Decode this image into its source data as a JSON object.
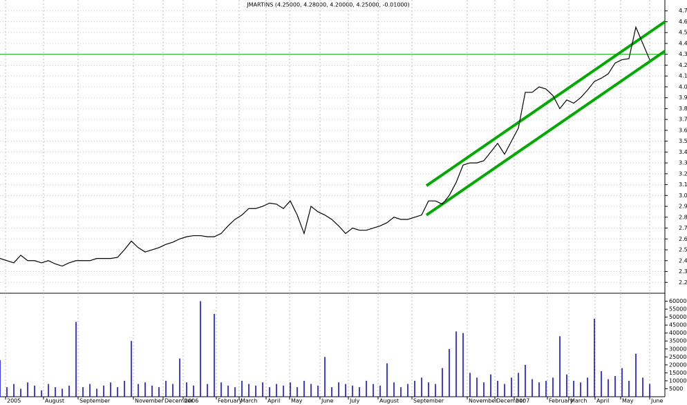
{
  "chart_data": {
    "type": "line",
    "title": "JMARTINS (4.25000, 4.28000, 4.20000, 4.25000, -0.01000)",
    "color": "#000000",
    "x": [
      0,
      10,
      20,
      30,
      40,
      50,
      60,
      70,
      80,
      90,
      100,
      110,
      120,
      130,
      140,
      150,
      160,
      170,
      180,
      190,
      200,
      210,
      220,
      230,
      240,
      250,
      260,
      270,
      280,
      290,
      300,
      310,
      320,
      330,
      340,
      350,
      360,
      370,
      380,
      390,
      400,
      410,
      420,
      430,
      440,
      450,
      460,
      470,
      480,
      490,
      500,
      510,
      520,
      530,
      540,
      550,
      560,
      570,
      580,
      590,
      600,
      610,
      620,
      630,
      640,
      650,
      660,
      670,
      680,
      690,
      700,
      710,
      720,
      730,
      740,
      750,
      760,
      770,
      780,
      790,
      800,
      810,
      820,
      830,
      840,
      850,
      860,
      870,
      880,
      890,
      900,
      910,
      920,
      930,
      940
    ],
    "values": [
      2.42,
      2.4,
      2.38,
      2.45,
      2.4,
      2.4,
      2.38,
      2.4,
      2.37,
      2.35,
      2.38,
      2.4,
      2.4,
      2.4,
      2.42,
      2.42,
      2.42,
      2.43,
      2.5,
      2.58,
      2.52,
      2.48,
      2.5,
      2.52,
      2.55,
      2.57,
      2.6,
      2.62,
      2.63,
      2.63,
      2.62,
      2.62,
      2.65,
      2.72,
      2.78,
      2.82,
      2.88,
      2.88,
      2.9,
      2.93,
      2.92,
      2.88,
      2.95,
      2.82,
      2.65,
      2.9,
      2.85,
      2.82,
      2.78,
      2.72,
      2.65,
      2.7,
      2.68,
      2.68,
      2.7,
      2.72,
      2.75,
      2.8,
      2.78,
      2.78,
      2.8,
      2.82,
      2.95,
      2.95,
      2.92,
      3.0,
      3.12,
      3.28,
      3.3,
      3.3,
      3.32,
      3.4,
      3.48,
      3.38,
      3.5,
      3.62,
      3.95,
      3.95,
      4.0,
      3.98,
      3.92,
      3.8,
      3.88,
      3.85,
      3.9,
      3.97,
      4.05,
      4.08,
      4.12,
      4.22,
      4.25,
      4.26,
      4.55,
      4.4,
      4.25
    ],
    "volume": {
      "color": "#0000cc",
      "values": [
        23000,
        6000,
        8000,
        5000,
        9000,
        7000,
        4000,
        8000,
        6000,
        5000,
        7000,
        47000,
        6000,
        8000,
        5000,
        7000,
        9000,
        6000,
        10000,
        35000,
        8000,
        9000,
        7000,
        6000,
        10000,
        8000,
        24000,
        9000,
        7000,
        60000,
        8000,
        52000,
        9000,
        7000,
        6000,
        10000,
        8000,
        7000,
        9000,
        6000,
        8000,
        7000,
        9000,
        6000,
        10000,
        8000,
        7000,
        25000,
        6000,
        9000,
        8000,
        7000,
        6000,
        10000,
        8000,
        7000,
        21000,
        9000,
        6000,
        8000,
        10000,
        12000,
        9000,
        8000,
        18000,
        30000,
        41000,
        40000,
        15000,
        12000,
        9000,
        14000,
        10000,
        8000,
        12000,
        15000,
        20000,
        11000,
        9000,
        10000,
        12000,
        38000,
        14000,
        10000,
        9000,
        12000,
        49000,
        16000,
        11000,
        13000,
        18000,
        10000,
        27000,
        12000,
        8000
      ],
      "ylim": [
        0,
        65000
      ],
      "yticks": [
        5000,
        10000,
        15000,
        20000,
        25000,
        30000,
        35000,
        40000,
        45000,
        50000,
        55000,
        60000
      ]
    },
    "xlim": [
      0,
      962
    ],
    "xticks": [
      {
        "value": 8,
        "label": "2005"
      },
      {
        "value": 63,
        "label": "August"
      },
      {
        "value": 113,
        "label": "September"
      },
      {
        "value": 193,
        "label": "November"
      },
      {
        "value": 236,
        "label": "December"
      },
      {
        "value": 265,
        "label": "2006"
      },
      {
        "value": 313,
        "label": "February"
      },
      {
        "value": 346,
        "label": "March"
      },
      {
        "value": 385,
        "label": "April"
      },
      {
        "value": 419,
        "label": "May"
      },
      {
        "value": 463,
        "label": "June"
      },
      {
        "value": 504,
        "label": "July"
      },
      {
        "value": 547,
        "label": "August"
      },
      {
        "value": 596,
        "label": "September"
      },
      {
        "value": 676,
        "label": "November"
      },
      {
        "value": 716,
        "label": "December"
      },
      {
        "value": 744,
        "label": "2007"
      },
      {
        "value": 792,
        "label": "February"
      },
      {
        "value": 823,
        "label": "March"
      },
      {
        "value": 861,
        "label": "April"
      },
      {
        "value": 898,
        "label": "May"
      },
      {
        "value": 940,
        "label": "June"
      }
    ],
    "ylim": [
      2.1,
      4.8
    ],
    "yticks": [
      2.2,
      2.3,
      2.4,
      2.5,
      2.6,
      2.7,
      2.8,
      2.9,
      {
        "value": 3,
        "label": "3.0"
      },
      3.1,
      3.2,
      3.3,
      3.4,
      3.5,
      3.6,
      3.7,
      3.8,
      3.9,
      {
        "value": 4,
        "label": "4.0"
      },
      4.1,
      4.2,
      4.3,
      4.4,
      4.5,
      4.6,
      4.7
    ],
    "grid": true,
    "trend_lines": {
      "color": "#00aa00",
      "lines": [
        {
          "x": [
            617,
            962
          ],
          "y": [
            3.09,
            4.6
          ]
        },
        {
          "x": [
            617,
            962
          ],
          "y": [
            2.82,
            4.33
          ]
        }
      ]
    },
    "hline": {
      "color": "#00aa00",
      "value": 4.3
    }
  }
}
